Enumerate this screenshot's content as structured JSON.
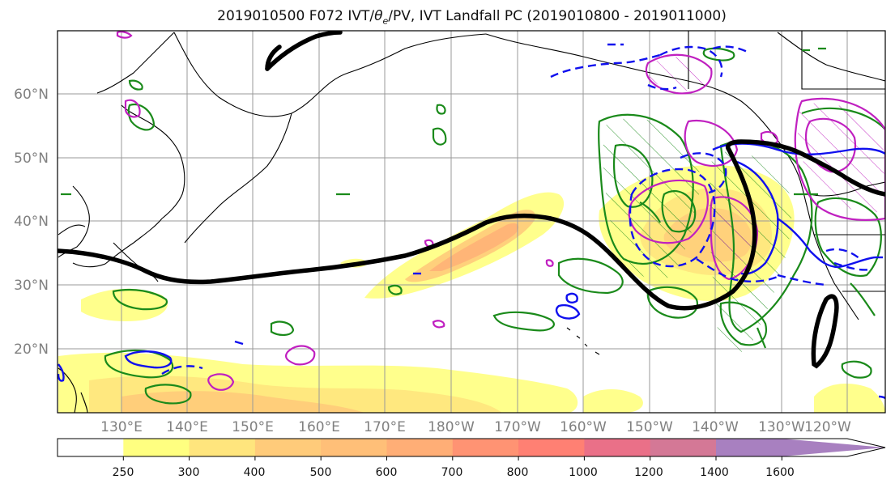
{
  "title": {
    "prefix": "2019010500 F072 IVT/",
    "theta": "θ",
    "theta_sub": "e",
    "suffix": "/PV, IVT Landfall PC (2019010800 - 2019011000)"
  },
  "map": {
    "lon_labels": [
      "130°E",
      "140°E",
      "150°E",
      "160°E",
      "170°E",
      "180°W",
      "170°W",
      "160°W",
      "150°W",
      "140°W",
      "130°W",
      "120°W"
    ],
    "lat_labels": [
      "60°N",
      "50°N",
      "40°N",
      "30°N",
      "20°N"
    ],
    "colors": {
      "jet": "#000000",
      "green_contour": "#1a8a1a",
      "magenta_contour": "#c020c0",
      "blue_contour": "#1010ee",
      "coast": "#000000"
    }
  },
  "colorbar": {
    "ticks": [
      "250",
      "300",
      "400",
      "500",
      "600",
      "700",
      "800",
      "1000",
      "1200",
      "1400",
      "1600"
    ],
    "colors": [
      "#ffffff",
      "#ffff80",
      "#ffe57d",
      "#ffcb7a",
      "#ffbf78",
      "#ffae76",
      "#ff9373",
      "#ff8073",
      "#ea7088",
      "#d47896",
      "#a880c0",
      "#a880c0"
    ]
  }
}
